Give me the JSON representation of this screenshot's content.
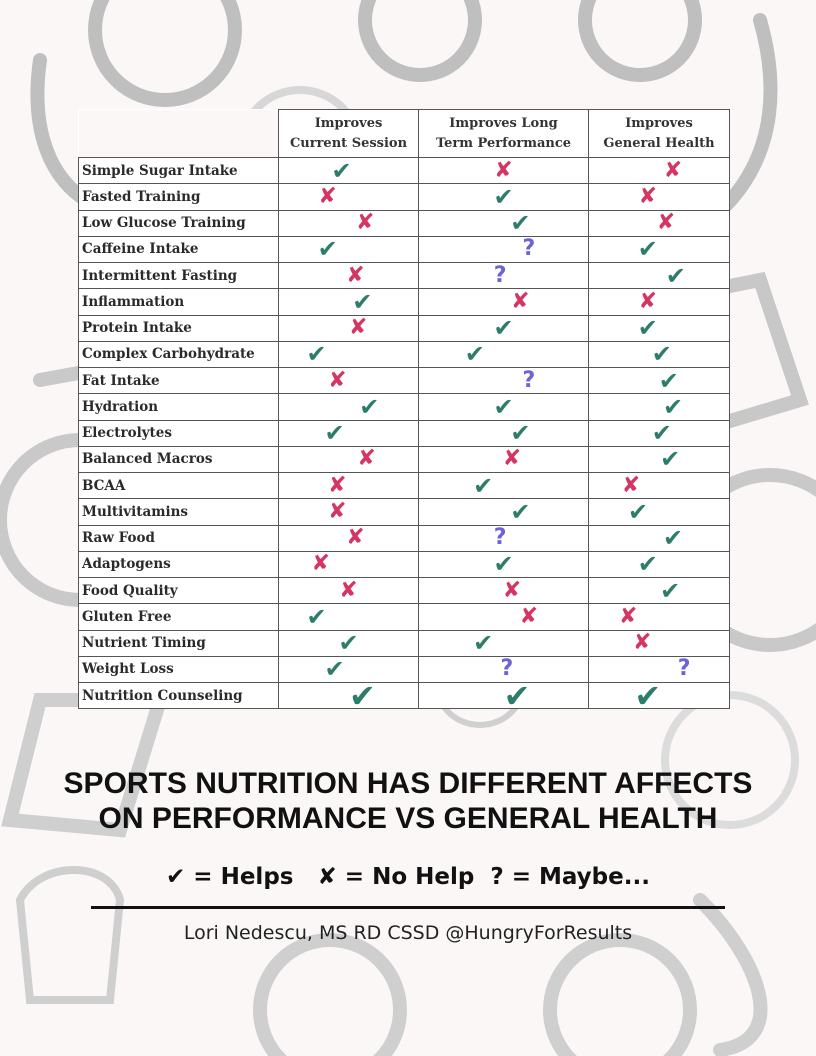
{
  "table": {
    "headers": {
      "col1_line1": "Improves",
      "col1_line2": "Current Session",
      "col2_line1": "Improves Long",
      "col2_line2": "Term Performance",
      "col3_line1": "Improves",
      "col3_line2": "General Health"
    },
    "rows": [
      {
        "label": "Simple Sugar Intake",
        "marks": [
          "helps",
          "nohelp",
          "nohelp"
        ]
      },
      {
        "label": "Fasted Training",
        "marks": [
          "nohelp",
          "helps",
          "nohelp"
        ]
      },
      {
        "label": "Low Glucose Training",
        "marks": [
          "nohelp",
          "helps",
          "nohelp"
        ]
      },
      {
        "label": "Caffeine Intake",
        "marks": [
          "helps",
          "maybe",
          "helps"
        ]
      },
      {
        "label": "Intermittent Fasting",
        "marks": [
          "nohelp",
          "maybe",
          "helps"
        ]
      },
      {
        "label": "Inflammation",
        "marks": [
          "helps",
          "nohelp",
          "nohelp"
        ]
      },
      {
        "label": "Protein Intake",
        "marks": [
          "nohelp",
          "helps",
          "helps"
        ]
      },
      {
        "label": "Complex Carbohydrate",
        "marks": [
          "helps",
          "helps",
          "helps"
        ]
      },
      {
        "label": "Fat Intake",
        "marks": [
          "nohelp",
          "maybe",
          "helps"
        ]
      },
      {
        "label": "Hydration",
        "marks": [
          "helps",
          "helps",
          "helps"
        ]
      },
      {
        "label": "Electrolytes",
        "marks": [
          "helps",
          "helps",
          "helps"
        ]
      },
      {
        "label": "Balanced Macros",
        "marks": [
          "nohelp",
          "nohelp",
          "helps"
        ]
      },
      {
        "label": "BCAA",
        "marks": [
          "nohelp",
          "helps",
          "nohelp"
        ]
      },
      {
        "label": "Multivitamins",
        "marks": [
          "nohelp",
          "helps",
          "helps"
        ]
      },
      {
        "label": "Raw Food",
        "marks": [
          "nohelp",
          "maybe",
          "helps"
        ]
      },
      {
        "label": "Adaptogens",
        "marks": [
          "nohelp",
          "helps",
          "helps"
        ]
      },
      {
        "label": "Food Quality",
        "marks": [
          "nohelp",
          "nohelp",
          "helps"
        ]
      },
      {
        "label": "Gluten Free",
        "marks": [
          "helps",
          "nohelp",
          "nohelp"
        ]
      },
      {
        "label": "Nutrient Timing",
        "marks": [
          "helps",
          "helps",
          "nohelp"
        ]
      },
      {
        "label": "Weight Loss",
        "marks": [
          "helps",
          "maybe",
          "maybe"
        ]
      },
      {
        "label": "Nutrition Counseling",
        "marks": [
          "helps",
          "helps",
          "helps"
        ]
      }
    ]
  },
  "symbols": {
    "helps": "✔",
    "nohelp": "✘",
    "maybe": "?"
  },
  "colors": {
    "helps": "#2e7d6b",
    "nohelp": "#d43562",
    "maybe": "#6b63d6"
  },
  "headline": {
    "line1": "SPORTS NUTRITION HAS DIFFERENT AFFECTS",
    "line2": "ON PERFORMANCE VS GENERAL HEALTH"
  },
  "legend": {
    "helps": "✔ = Helps",
    "nohelp": "✘ = No Help",
    "maybe": "? = Maybe..."
  },
  "credit": "Lori Nedescu, MS RD CSSD @HungryForResults"
}
